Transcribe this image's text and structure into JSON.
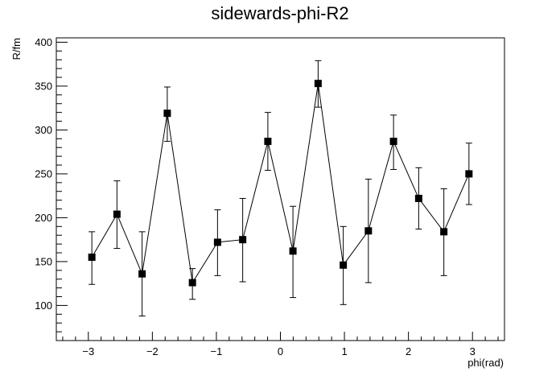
{
  "chart_data": {
    "type": "scatter",
    "title": "sidewards-phi-R2",
    "xlabel": "phi(rad)",
    "ylabel": "R/fm",
    "xlim": [
      -3.5,
      3.5
    ],
    "ylim": [
      60,
      405
    ],
    "grid": false,
    "legend": "none",
    "style": {
      "marker": "square",
      "connect_points": true,
      "error_bars": true
    },
    "x_ticks": [
      -3,
      -2,
      -1,
      0,
      1,
      2,
      3
    ],
    "x_tick_labels": [
      "−3",
      "−2",
      "−1",
      "0",
      "1",
      "2",
      "3"
    ],
    "y_ticks": [
      100,
      150,
      200,
      250,
      300,
      350,
      400
    ],
    "y_tick_labels": [
      "100",
      "150",
      "200",
      "250",
      "300",
      "350",
      "400"
    ],
    "series": [
      {
        "x": [
          -2.945,
          -2.553,
          -2.16,
          -1.767,
          -1.374,
          -0.982,
          -0.589,
          -0.196,
          0.196,
          0.589,
          0.982,
          1.374,
          1.767,
          2.16,
          2.553,
          2.945
        ],
        "y": [
          155,
          204,
          136,
          319,
          126,
          172,
          175,
          287,
          162,
          353,
          146,
          185,
          287,
          222,
          184,
          250
        ],
        "err_low": [
          31,
          39,
          48,
          32,
          19,
          38,
          48,
          33,
          53,
          27,
          45,
          59,
          32,
          35,
          50,
          35
        ],
        "err_high": [
          29,
          38,
          48,
          30,
          16,
          37,
          47,
          33,
          51,
          26,
          44,
          59,
          30,
          35,
          49,
          35
        ]
      }
    ]
  }
}
